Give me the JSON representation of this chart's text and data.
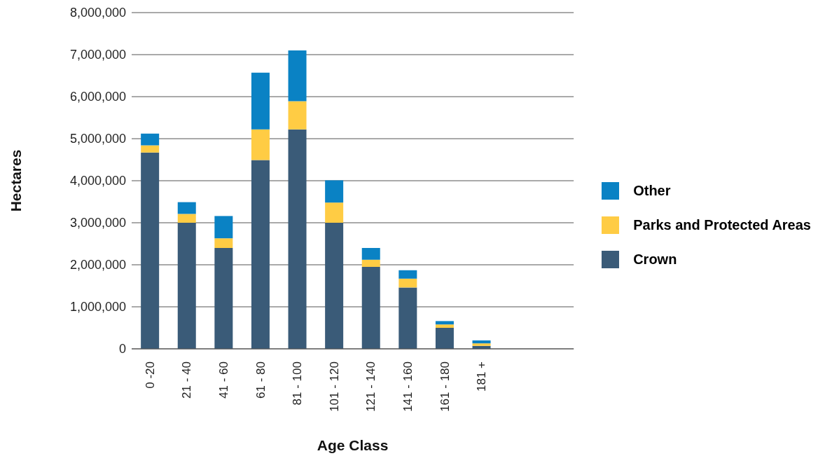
{
  "chart_data": {
    "type": "bar",
    "stacked": true,
    "xlabel": "Age Class",
    "ylabel": "Hectares",
    "categories": [
      "0 -20",
      "21 - 40",
      "41 - 60",
      "61 - 80",
      "81 - 100",
      "101 - 120",
      "121 - 140",
      "141 - 160",
      "161 - 180",
      "181 +",
      null,
      null
    ],
    "series": [
      {
        "name": "Crown",
        "color": "#3a5b78",
        "values": [
          4670000,
          3000000,
          2400000,
          4490000,
          5220000,
          3000000,
          1950000,
          1460000,
          500000,
          70000,
          null,
          null
        ]
      },
      {
        "name": "Parks and Protected Areas",
        "color": "#ffcc44",
        "values": [
          170000,
          210000,
          230000,
          730000,
          670000,
          480000,
          170000,
          210000,
          80000,
          60000,
          null,
          null
        ]
      },
      {
        "name": "Other",
        "color": "#0a82c4",
        "values": [
          280000,
          280000,
          530000,
          1350000,
          1210000,
          530000,
          280000,
          200000,
          80000,
          70000,
          null,
          null
        ]
      }
    ],
    "ylim": [
      0,
      8000000
    ],
    "yticks": [
      {
        "value": 0,
        "label": "0"
      },
      {
        "value": 1000000,
        "label": "1,000,000"
      },
      {
        "value": 2000000,
        "label": "2,000,000"
      },
      {
        "value": 3000000,
        "label": "3,000,000"
      },
      {
        "value": 4000000,
        "label": "4,000,000"
      },
      {
        "value": 5000000,
        "label": "5,000,000"
      },
      {
        "value": 6000000,
        "label": "6,000,000"
      },
      {
        "value": 7000000,
        "label": "7,000,000"
      },
      {
        "value": 8000000,
        "label": "8,000,000"
      }
    ],
    "grid": "y",
    "legend": "right"
  }
}
